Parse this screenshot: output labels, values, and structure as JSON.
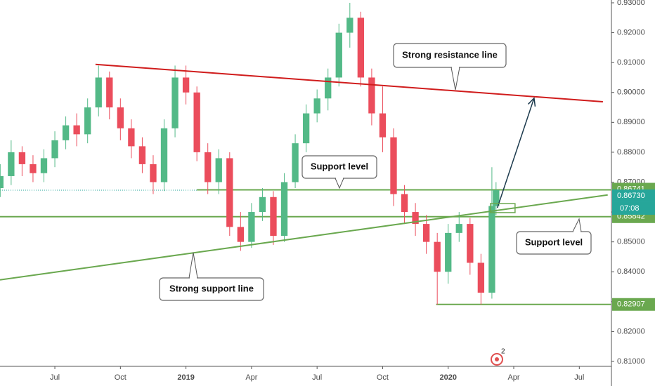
{
  "chart_data": {
    "type": "candlestick",
    "up_color": "#53b987",
    "down_color": "#eb4d5c",
    "xlim": [
      4.49,
      32.47
    ],
    "ylim": [
      0.80835,
      0.93094
    ],
    "xticks": [
      {
        "value": 7,
        "label": "Jul"
      },
      {
        "value": 10,
        "label": "Oct"
      },
      {
        "value": 13,
        "label": "2019"
      },
      {
        "value": 16,
        "label": "Apr"
      },
      {
        "value": 19,
        "label": "Jul"
      },
      {
        "value": 22,
        "label": "Oct"
      },
      {
        "value": 25,
        "label": "2020"
      },
      {
        "value": 28,
        "label": "Apr"
      },
      {
        "value": 31,
        "label": "Jul"
      }
    ],
    "yticks": [
      {
        "value": 0.93,
        "label": "0.93000"
      },
      {
        "value": 0.92,
        "label": "0.92000"
      },
      {
        "value": 0.91,
        "label": "0.91000"
      },
      {
        "value": 0.9,
        "label": "0.90000"
      },
      {
        "value": 0.89,
        "label": "0.89000"
      },
      {
        "value": 0.88,
        "label": "0.88000"
      },
      {
        "value": 0.87,
        "label": "0.87000"
      },
      {
        "value": 0.86,
        "label": "0.86000"
      },
      {
        "value": 0.85,
        "label": "0.85000"
      },
      {
        "value": 0.84,
        "label": "0.84000"
      },
      {
        "value": 0.83,
        "label": "0.83000"
      },
      {
        "value": 0.82,
        "label": "0.82000"
      },
      {
        "value": 0.81,
        "label": "0.81000"
      }
    ],
    "grid": false,
    "x": [
      4.5,
      5,
      5.5,
      6,
      6.5,
      7,
      7.5,
      8,
      8.5,
      9,
      9.5,
      10,
      10.5,
      11,
      11.5,
      12,
      12.5,
      13,
      13.5,
      14,
      14.5,
      15,
      15.5,
      16,
      16.5,
      17,
      17.5,
      18,
      18.5,
      19,
      19.5,
      20,
      20.5,
      21,
      21.5,
      22,
      22.5,
      23,
      23.5,
      24,
      24.5,
      25,
      25.5,
      26,
      26.5,
      27,
      27.19
    ],
    "open": [
      0.868,
      0.872,
      0.88,
      0.876,
      0.873,
      0.878,
      0.884,
      0.889,
      0.886,
      0.895,
      0.905,
      0.895,
      0.888,
      0.882,
      0.876,
      0.87,
      0.888,
      0.905,
      0.9,
      0.88,
      0.87,
      0.878,
      0.855,
      0.85,
      0.86,
      0.865,
      0.852,
      0.87,
      0.883,
      0.893,
      0.898,
      0.905,
      0.92,
      0.925,
      0.905,
      0.893,
      0.885,
      0.866,
      0.86,
      0.856,
      0.85,
      0.84,
      0.853,
      0.856,
      0.843,
      0.833,
      0.862
    ],
    "high": [
      0.876,
      0.884,
      0.882,
      0.879,
      0.881,
      0.887,
      0.892,
      0.893,
      0.898,
      0.909,
      0.907,
      0.898,
      0.891,
      0.885,
      0.879,
      0.891,
      0.909,
      0.909,
      0.902,
      0.883,
      0.881,
      0.88,
      0.86,
      0.863,
      0.868,
      0.867,
      0.873,
      0.886,
      0.896,
      0.901,
      0.908,
      0.923,
      0.93,
      0.927,
      0.908,
      0.902,
      0.888,
      0.869,
      0.863,
      0.859,
      0.853,
      0.856,
      0.86,
      0.858,
      0.846,
      0.875,
      0.87
    ],
    "low": [
      0.865,
      0.869,
      0.872,
      0.87,
      0.87,
      0.875,
      0.881,
      0.882,
      0.883,
      0.892,
      0.891,
      0.884,
      0.878,
      0.873,
      0.866,
      0.867,
      0.885,
      0.896,
      0.877,
      0.866,
      0.866,
      0.852,
      0.847,
      0.848,
      0.857,
      0.849,
      0.85,
      0.868,
      0.88,
      0.89,
      0.894,
      0.902,
      0.915,
      0.902,
      0.889,
      0.88,
      0.862,
      0.856,
      0.852,
      0.846,
      0.829,
      0.836,
      0.85,
      0.839,
      0.829,
      0.831,
      0.859
    ],
    "close": [
      0.872,
      0.88,
      0.876,
      0.873,
      0.878,
      0.884,
      0.889,
      0.886,
      0.895,
      0.905,
      0.895,
      0.888,
      0.882,
      0.876,
      0.87,
      0.888,
      0.905,
      0.9,
      0.88,
      0.87,
      0.878,
      0.855,
      0.85,
      0.86,
      0.865,
      0.852,
      0.87,
      0.883,
      0.893,
      0.898,
      0.905,
      0.92,
      0.925,
      0.905,
      0.893,
      0.885,
      0.866,
      0.86,
      0.856,
      0.85,
      0.84,
      0.853,
      0.856,
      0.843,
      0.833,
      0.862,
      0.8673
    ],
    "resistance_line": {
      "x": [
        8.86,
        32.08
      ],
      "y": [
        0.9094,
        0.8969
      ],
      "color": "#d01c1c"
    },
    "support_line": {
      "x": [
        4.49,
        32.3
      ],
      "y": [
        0.8373,
        0.8657
      ],
      "color": "#6aa84f"
    },
    "arrow": {
      "x": [
        27.25,
        28.93
      ],
      "y": [
        0.8614,
        0.8981
      ],
      "color": "#1c3a4d"
    },
    "box": {
      "x": [
        26.93,
        28.06
      ],
      "y": [
        0.8628,
        0.8598
      ],
      "color": "#6aa84f"
    },
    "price_labels": [
      {
        "value": 0.86741,
        "label": "0.86741",
        "color": "#6aa84f"
      },
      {
        "value": 0.8673,
        "label": "0.86730",
        "color": "#26a69a"
      },
      {
        "value": 0.85842,
        "label": "0.85842",
        "color": "#6aa84f"
      },
      {
        "value": 0.82907,
        "label": "0.82907",
        "color": "#6aa84f"
      }
    ],
    "countdown": "07:08",
    "callouts": [
      "Strong resistance line",
      "Support level",
      "Support level",
      "Strong support line"
    ],
    "events_badge": "2"
  }
}
